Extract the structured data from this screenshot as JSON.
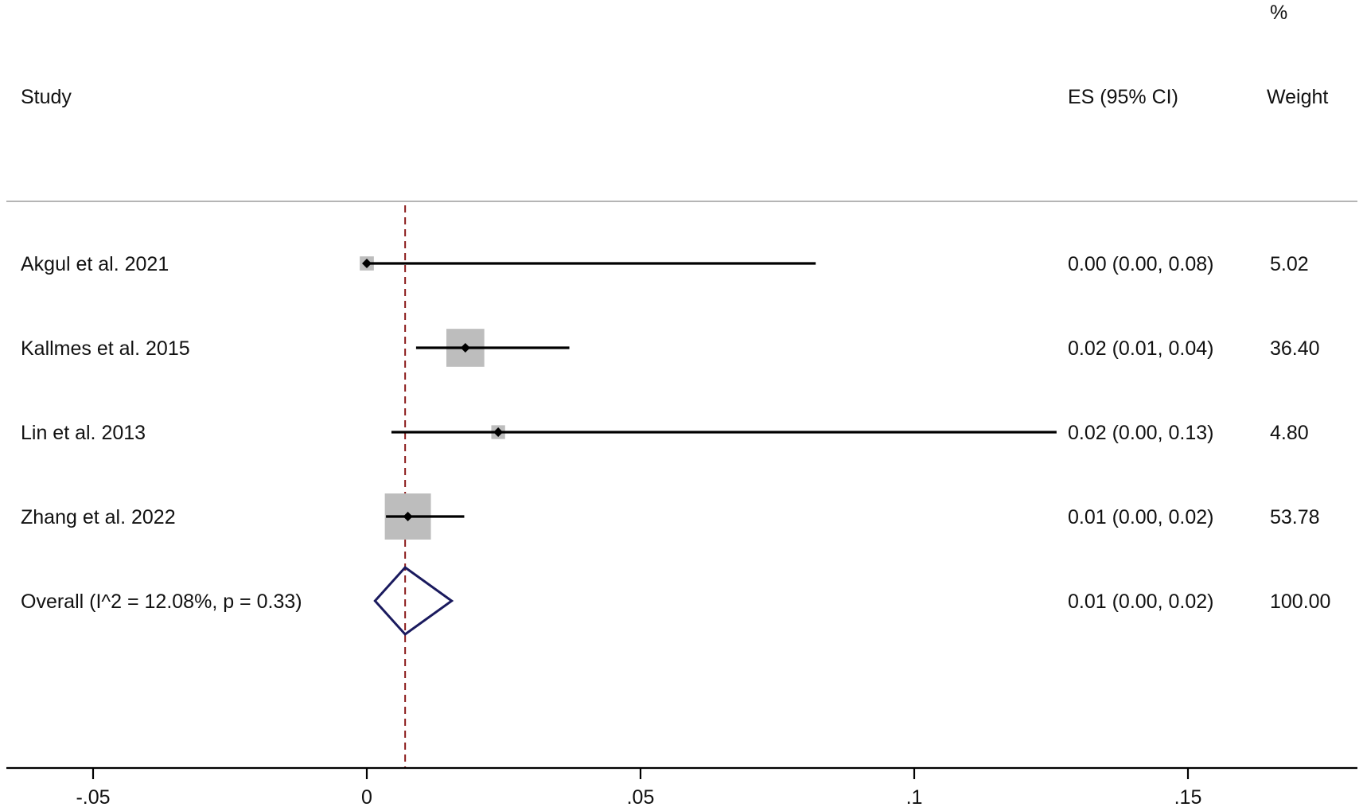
{
  "chart_data": {
    "type": "forest",
    "headers": {
      "study": "Study",
      "es": "ES (95% CI)",
      "weight_pct": "%",
      "weight": "Weight"
    },
    "studies": [
      {
        "label": "Akgul et al. 2021",
        "es": 0.0,
        "lower": 0.0,
        "upper": 0.082,
        "weight": 5.02,
        "es_text": "0.00 (0.00, 0.08)",
        "weight_text": "5.02"
      },
      {
        "label": "Kallmes et al. 2015",
        "es": 0.018,
        "lower": 0.009,
        "upper": 0.037,
        "weight": 36.4,
        "es_text": "0.02 (0.01, 0.04)",
        "weight_text": "36.40"
      },
      {
        "label": "Lin et al. 2013",
        "es": 0.024,
        "lower": 0.0045,
        "upper": 0.126,
        "weight": 4.8,
        "es_text": "0.02 (0.00, 0.13)",
        "weight_text": "4.80"
      },
      {
        "label": "Zhang et al. 2022",
        "es": 0.0075,
        "lower": 0.0035,
        "upper": 0.0178,
        "weight": 53.78,
        "es_text": "0.01 (0.00, 0.02)",
        "weight_text": "53.78"
      }
    ],
    "overall": {
      "label": "Overall  (I^2 = 12.08%, p = 0.33)",
      "es": 0.007,
      "lower": 0.0015,
      "upper": 0.0155,
      "es_text": "0.01 (0.00, 0.02)",
      "weight_text": "100.00"
    },
    "xaxis": {
      "ticks": [
        -0.05,
        0,
        0.05,
        0.1,
        0.15
      ],
      "tick_labels": [
        "-.05",
        "0",
        ".05",
        ".1",
        ".15"
      ],
      "xlim": [
        -0.066,
        0.182
      ]
    },
    "reference_line": 0.007,
    "colors": {
      "ci_line": "#000000",
      "marker": "#000000",
      "weight_box": "#bdbdbd",
      "overall_diamond": "#1a1a5e",
      "reference_line": "#8b1a1a",
      "separator": "#b5b5b5"
    }
  }
}
